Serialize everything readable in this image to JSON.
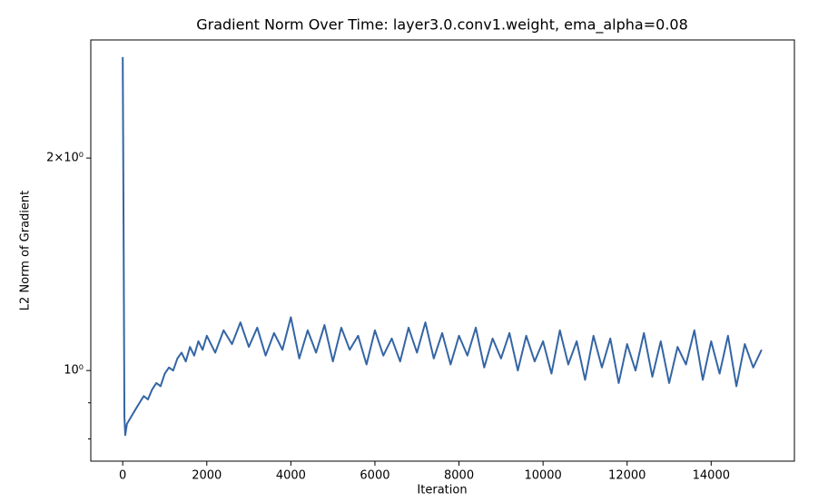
{
  "chart_data": {
    "type": "line",
    "title": "Gradient Norm Over Time: layer3.0.conv1.weight, ema_alpha=0.08",
    "x_label": "Iteration",
    "y_label": "L2 Norm of Gradient",
    "y_scale": "log",
    "xlim": [
      -760,
      15980
    ],
    "ylim": [
      0.744,
      2.94
    ],
    "xticks": [
      0,
      2000,
      4000,
      6000,
      8000,
      10000,
      12000,
      14000
    ],
    "yticks": [
      {
        "value": 1,
        "label": "10⁰"
      },
      {
        "value": 2,
        "label": "2×10⁰"
      }
    ],
    "yminorticks": [
      0.8,
      0.9
    ],
    "series": [
      {
        "color": "#3465a4",
        "x": [
          0,
          20,
          40,
          60,
          100,
          200,
          300,
          400,
          500,
          600,
          700,
          800,
          900,
          1000,
          1100,
          1200,
          1300,
          1400,
          1500,
          1600,
          1700,
          1800,
          1900,
          2000,
          2200,
          2400,
          2600,
          2800,
          3000,
          3200,
          3400,
          3600,
          3800,
          4000,
          4200,
          4400,
          4600,
          4800,
          5000,
          5200,
          5400,
          5600,
          5800,
          6000,
          6200,
          6400,
          6600,
          6800,
          7000,
          7200,
          7400,
          7600,
          7800,
          8000,
          8200,
          8400,
          8600,
          8800,
          9000,
          9200,
          9400,
          9600,
          9800,
          10000,
          10200,
          10400,
          10600,
          10800,
          11000,
          11200,
          11400,
          11600,
          11800,
          12000,
          12200,
          12400,
          12600,
          12800,
          13000,
          13200,
          13400,
          13600,
          13800,
          14000,
          14200,
          14400,
          14600,
          14800,
          15000,
          15200
        ],
        "values": [
          2.78,
          1.6,
          0.86,
          0.81,
          0.84,
          0.86,
          0.88,
          0.9,
          0.92,
          0.91,
          0.94,
          0.96,
          0.95,
          0.99,
          1.01,
          1.0,
          1.04,
          1.06,
          1.03,
          1.08,
          1.05,
          1.1,
          1.07,
          1.12,
          1.06,
          1.14,
          1.09,
          1.17,
          1.08,
          1.15,
          1.05,
          1.13,
          1.07,
          1.19,
          1.04,
          1.14,
          1.06,
          1.16,
          1.03,
          1.15,
          1.07,
          1.12,
          1.02,
          1.14,
          1.05,
          1.11,
          1.03,
          1.15,
          1.06,
          1.17,
          1.04,
          1.13,
          1.02,
          1.12,
          1.05,
          1.15,
          1.01,
          1.11,
          1.04,
          1.13,
          1.0,
          1.12,
          1.03,
          1.1,
          0.99,
          1.14,
          1.02,
          1.1,
          0.97,
          1.12,
          1.01,
          1.11,
          0.96,
          1.09,
          1.0,
          1.13,
          0.98,
          1.1,
          0.96,
          1.08,
          1.02,
          1.14,
          0.97,
          1.1,
          0.99,
          1.12,
          0.95,
          1.09,
          1.01,
          1.07
        ]
      }
    ]
  }
}
